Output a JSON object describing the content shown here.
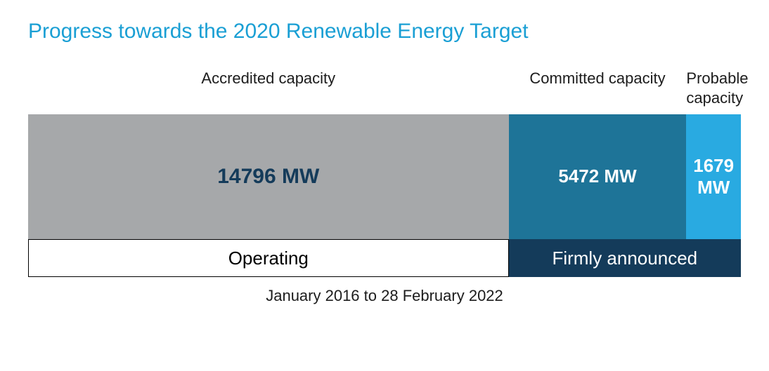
{
  "chart": {
    "type": "stacked-bar-horizontal",
    "title": "Progress towards the 2020 Renewable Energy Target",
    "title_color": "#1a9fd4",
    "title_fontsize": 30,
    "label_fontsize": 22,
    "value_fontsize_large": 30,
    "value_fontsize_small": 26,
    "status_fontsize": 26,
    "footer_fontsize": 22,
    "background_color": "#ffffff",
    "total_value": 21947,
    "segments": [
      {
        "key": "accredited",
        "label": "Accredited capacity",
        "value": 14796,
        "display": "14796 MW",
        "bar_color": "#a6a8aa",
        "text_color": "#143b5a",
        "status": "operating"
      },
      {
        "key": "committed",
        "label": "Committed capacity",
        "value": 5472,
        "display": "5472 MW",
        "bar_color": "#1e7498",
        "text_color": "#ffffff",
        "status": "announced"
      },
      {
        "key": "probable",
        "label": "Probable capacity",
        "value": 1679,
        "display": "1679 MW",
        "bar_color": "#29aae1",
        "text_color": "#ffffff",
        "status": "announced"
      }
    ],
    "status_groups": [
      {
        "key": "operating",
        "label": "Operating",
        "bg_color": "#ffffff",
        "text_color": "#000000",
        "border": "1px solid #000000"
      },
      {
        "key": "announced",
        "label": "Firmly announced",
        "bg_color": "#143b5a",
        "text_color": "#ffffff",
        "border": "none"
      }
    ],
    "footer": "January 2016 to 28 February 2022"
  }
}
